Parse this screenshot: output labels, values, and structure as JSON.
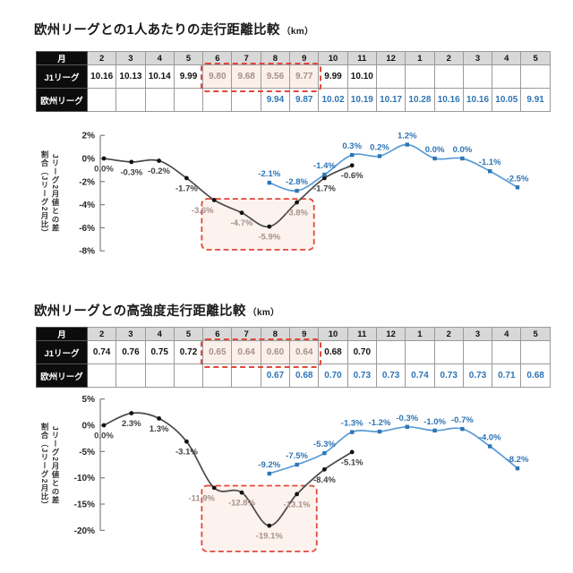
{
  "colors": {
    "accent_blue": "#2E74B5",
    "line_blue": "#5B9BD5",
    "marker_blue": "#2E75B6",
    "line_dark": "#4A4A4A",
    "muted_gray": "#A6908A",
    "highlight_red": "#E0483C",
    "table_month_header_bg": "#D8D8D8",
    "table_label_bg": "#0C0C0C"
  },
  "sections": [
    {
      "title": "欧州リーグとの1人あたりの走行距離比較",
      "title_unit": "（km）",
      "table": {
        "corner_label": "月",
        "months": [
          "2",
          "3",
          "4",
          "5",
          "6",
          "7",
          "8",
          "9",
          "10",
          "11",
          "12",
          "1",
          "2",
          "3",
          "4",
          "5"
        ],
        "rows": [
          {
            "label": "J1リーグ",
            "style": "dark",
            "values": [
              "10.16",
              "10.13",
              "10.14",
              "9.99",
              "9.80",
              "9.68",
              "9.56",
              "9.77",
              "9.99",
              "10.10",
              "",
              "",
              "",
              "",
              "",
              ""
            ],
            "highlight_cols": [
              4,
              5,
              6,
              7
            ]
          },
          {
            "label": "欧州リーグ",
            "style": "blue",
            "values": [
              "",
              "",
              "",
              "",
              "",
              "",
              "9.94",
              "9.87",
              "10.02",
              "10.19",
              "10.17",
              "10.28",
              "10.16",
              "10.16",
              "10.05",
              "9.91"
            ]
          }
        ]
      },
      "chart_data": {
        "type": "line",
        "ylabel_left": "割合（Jリーグ2月比）",
        "ylabel_right": "Jリーグ2月値との差",
        "categories": [
          "2",
          "3",
          "4",
          "5",
          "6",
          "7",
          "8",
          "9",
          "10",
          "11",
          "12",
          "1",
          "2",
          "3",
          "4",
          "5"
        ],
        "ylim": [
          -8,
          2
        ],
        "grid": false,
        "legend": "none",
        "yticks": [
          {
            "label": "2%",
            "value": 2
          },
          {
            "label": "0%",
            "value": 0
          },
          {
            "label": "-2%",
            "value": -2
          },
          {
            "label": "-4%",
            "value": -4
          },
          {
            "label": "-6%",
            "value": -6
          },
          {
            "label": "-8%",
            "value": -8
          }
        ],
        "series": [
          {
            "name": "J1リーグ",
            "color": "#4A4A4A",
            "marker_color": "#111111",
            "label_color": "#3F3F3F",
            "marker": "circle",
            "start_slot": 0,
            "label_side": "below",
            "values": [
              0.0,
              -0.3,
              -0.2,
              -1.7,
              -3.6,
              -4.7,
              -5.9,
              -3.8,
              -1.7,
              -0.6
            ],
            "labels": [
              "0.0%",
              "-0.3%",
              "-0.2%",
              "-1.7%",
              "-3.6%",
              "-4.7%",
              "-5.9%",
              "-3.8%",
              "-1.7%",
              "-0.6%"
            ],
            "muted_label_indices": [
              4,
              5,
              6,
              7
            ],
            "label_dx": [
              0,
              0,
              0,
              0,
              -13,
              0,
              0,
              0,
              0,
              0
            ]
          },
          {
            "name": "欧州リーグ",
            "color": "#5B9BD5",
            "marker_color": "#2E75B6",
            "label_color": "#2E74B5",
            "marker": "square",
            "start_slot": 6,
            "label_side": "above",
            "values": [
              -2.1,
              -2.8,
              -1.4,
              0.3,
              0.2,
              1.2,
              0.0,
              0.0,
              -1.1,
              -2.5
            ],
            "labels": [
              "-2.1%",
              "-2.8%",
              "-1.4%",
              "0.3%",
              "0.2%",
              "1.2%",
              "0.0%",
              "0.0%",
              "-1.1%",
              "-2.5%"
            ]
          }
        ],
        "highlight_box": {
          "slot_start": 3.55,
          "slot_end": 7.62,
          "val_top": -3.5,
          "val_bottom": -7.9
        }
      }
    },
    {
      "title": "欧州リーグとの高強度走行距離比較",
      "title_unit": "（km）",
      "table": {
        "corner_label": "月",
        "months": [
          "2",
          "3",
          "4",
          "5",
          "6",
          "7",
          "8",
          "9",
          "10",
          "11",
          "12",
          "1",
          "2",
          "3",
          "4",
          "5"
        ],
        "rows": [
          {
            "label": "J1リーグ",
            "style": "dark",
            "values": [
              "0.74",
              "0.76",
              "0.75",
              "0.72",
              "0.65",
              "0.64",
              "0.60",
              "0.64",
              "0.68",
              "0.70",
              "",
              "",
              "",
              "",
              "",
              ""
            ],
            "highlight_cols": [
              4,
              5,
              6,
              7
            ]
          },
          {
            "label": "欧州リーグ",
            "style": "blue",
            "values": [
              "",
              "",
              "",
              "",
              "",
              "",
              "0.67",
              "0.68",
              "0.70",
              "0.73",
              "0.73",
              "0.74",
              "0.73",
              "0.73",
              "0.71",
              "0.68"
            ]
          }
        ]
      },
      "chart_data": {
        "type": "line",
        "ylabel_left": "割合（Jリーグ2月比）",
        "ylabel_right": "Jリーグ2月値との差",
        "categories": [
          "2",
          "3",
          "4",
          "5",
          "6",
          "7",
          "8",
          "9",
          "10",
          "11",
          "12",
          "1",
          "2",
          "3",
          "4",
          "5"
        ],
        "ylim": [
          -20,
          5
        ],
        "grid": false,
        "legend": "none",
        "yticks": [
          {
            "label": "5%",
            "value": 5
          },
          {
            "label": "0%",
            "value": 0
          },
          {
            "label": "-5%",
            "value": -5
          },
          {
            "label": "-10%",
            "value": -10
          },
          {
            "label": "-15%",
            "value": -15
          },
          {
            "label": "-20%",
            "value": -20
          }
        ],
        "series": [
          {
            "name": "J1リーグ",
            "color": "#4A4A4A",
            "marker_color": "#111111",
            "label_color": "#3F3F3F",
            "marker": "circle",
            "start_slot": 0,
            "label_side": "below",
            "values": [
              0.0,
              2.3,
              1.3,
              -3.1,
              -11.9,
              -12.8,
              -19.1,
              -13.1,
              -8.4,
              -5.1
            ],
            "labels": [
              "0.0%",
              "2.3%",
              "1.3%",
              "-3.1%",
              "-11.9%",
              "-12.8%",
              "-19.1%",
              "-13.1%",
              "-8.4%",
              "-5.1%"
            ],
            "muted_label_indices": [
              4,
              5,
              6,
              7
            ],
            "label_dx": [
              0,
              0,
              0,
              0,
              -14,
              0,
              0,
              0,
              0,
              0
            ]
          },
          {
            "name": "欧州リーグ",
            "color": "#5B9BD5",
            "marker_color": "#2E75B6",
            "label_color": "#2E74B5",
            "marker": "square",
            "start_slot": 6,
            "label_side": "above",
            "values": [
              -9.2,
              -7.5,
              -5.3,
              -1.3,
              -1.2,
              -0.3,
              -1.0,
              -0.7,
              -4.0,
              -8.2
            ],
            "labels": [
              "-9.2%",
              "-7.5%",
              "-5.3%",
              "-1.3%",
              "-1.2%",
              "-0.3%",
              "-1.0%",
              "-0.7%",
              "-4.0%",
              "-8.2%"
            ]
          }
        ],
        "highlight_box": {
          "slot_start": 3.55,
          "slot_end": 7.72,
          "val_top": -11.5,
          "val_bottom": -24
        }
      }
    }
  ]
}
